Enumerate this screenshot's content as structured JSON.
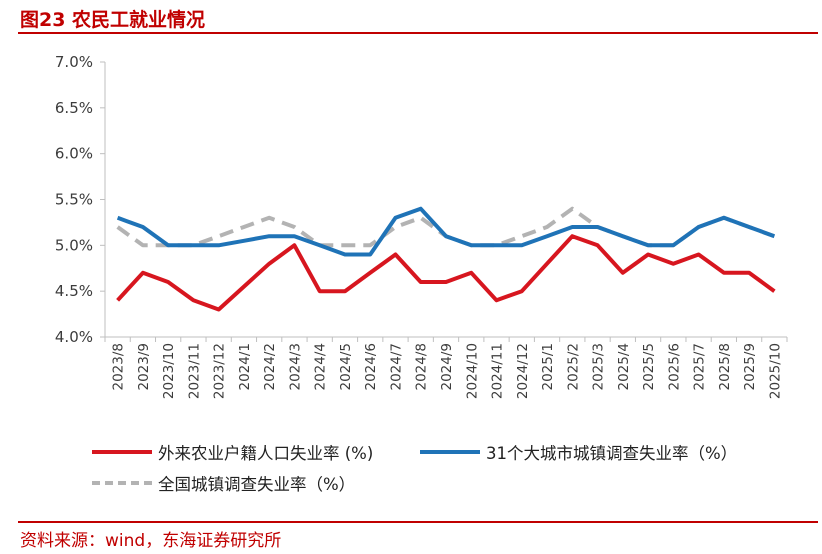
{
  "title": "图23  农民工就业情况",
  "source": "资料来源：wind，东海证券研究所",
  "colors": {
    "accent": "#c00000",
    "migrant": "#d7161f",
    "city31": "#1f73b7",
    "national": "#b3b3b3",
    "axis": "#bfbfbf"
  },
  "chart_data": {
    "type": "line",
    "x": [
      "2023/8",
      "2023/9",
      "2023/10",
      "2023/11",
      "2023/12",
      "2024/1",
      "2024/2",
      "2024/3",
      "2024/4",
      "2024/5",
      "2024/6",
      "2024/7",
      "2024/8",
      "2024/9",
      "2024/10",
      "2024/11",
      "2024/12",
      "2025/1",
      "2025/2",
      "2025/3",
      "2025/4",
      "2025/5",
      "2025/6",
      "2025/7",
      "2025/8",
      "2025/9",
      "2025/10"
    ],
    "y_ticks": [
      "4.0%",
      "4.5%",
      "5.0%",
      "5.5%",
      "6.0%",
      "6.5%",
      "7.0%"
    ],
    "ylim": [
      4.0,
      7.0
    ],
    "grid": false,
    "legend_position": "bottom",
    "series": [
      {
        "name": "外来农业户籍人口失业率 (%)",
        "style": "solid",
        "color": "#d7161f",
        "values": [
          4.4,
          4.7,
          4.6,
          4.4,
          4.3,
          4.55,
          4.8,
          5.0,
          4.5,
          4.5,
          4.7,
          4.9,
          4.6,
          4.6,
          4.7,
          4.4,
          4.5,
          4.8,
          5.1,
          5.0,
          4.7,
          4.9,
          4.8,
          4.9,
          4.7,
          4.7,
          4.5
        ]
      },
      {
        "name": "31个大城市城镇调查失业率（%）",
        "style": "solid",
        "color": "#1f73b7",
        "values": [
          5.3,
          5.2,
          5.0,
          5.0,
          5.0,
          5.05,
          5.1,
          5.1,
          5.0,
          4.9,
          4.9,
          5.3,
          5.4,
          5.1,
          5.0,
          5.0,
          5.0,
          5.1,
          5.2,
          5.2,
          5.1,
          5.0,
          5.0,
          5.2,
          5.3,
          5.2,
          5.1
        ]
      },
      {
        "name": "全国城镇调查失业率（%）",
        "style": "dashed",
        "color": "#b3b3b3",
        "values": [
          5.2,
          5.0,
          5.0,
          5.0,
          5.1,
          5.2,
          5.3,
          5.2,
          5.0,
          5.0,
          5.0,
          5.2,
          5.3,
          5.1,
          5.0,
          5.0,
          5.1,
          5.2,
          5.4,
          5.2,
          5.1,
          5.0,
          5.0,
          5.2,
          5.3,
          5.2,
          5.1
        ]
      }
    ]
  }
}
